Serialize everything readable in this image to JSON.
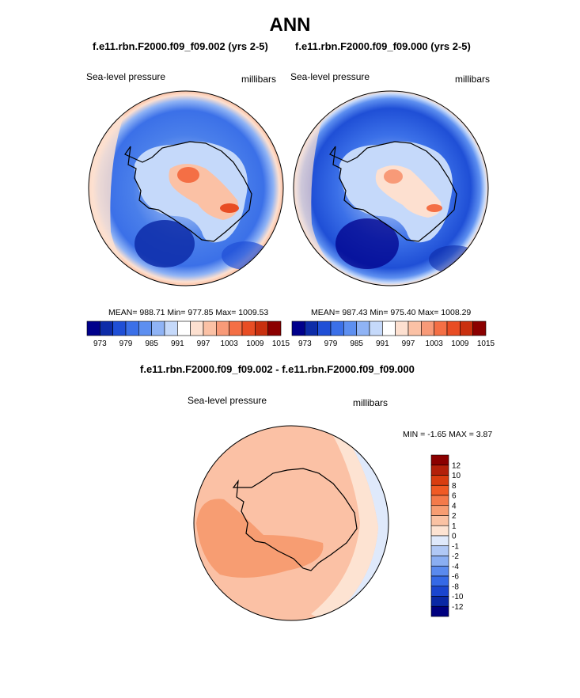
{
  "title": "ANN",
  "panels": [
    {
      "run": "f.e11.rbn.F2000.f09_f09.002 (yrs 2-5)",
      "variable": "Sea-level pressure",
      "units": "millibars",
      "stats": "MEAN= 988.71  Min= 977.85  Max= 1009.53"
    },
    {
      "run": "f.e11.rbn.F2000.f09_f09.000 (yrs 2-5)",
      "variable": "Sea-level pressure",
      "units": "millibars",
      "stats": "MEAN= 987.43  Min= 975.40  Max= 1008.29"
    }
  ],
  "diff": {
    "title": "f.e11.rbn.F2000.f09_f09.002 - f.e11.rbn.F2000.f09_f09.000",
    "variable": "Sea-level pressure",
    "units": "millibars",
    "stats": "MIN =  -1.65 MAX =  3.87"
  },
  "chart_data": [
    {
      "type": "heatmap",
      "projection": "south polar stereographic",
      "title": "f.e11.rbn.F2000.f09_f09.002 (yrs 2-5)",
      "variable": "Sea-level pressure",
      "units": "millibars",
      "mean": 988.71,
      "min": 977.85,
      "max": 1009.53,
      "colorbar_ticks": [
        "973",
        "979",
        "985",
        "991",
        "997",
        "1003",
        "1009",
        "1015"
      ],
      "colorbar_colors": [
        "#00008b",
        "#0d2ca8",
        "#1f4fd6",
        "#3b70e8",
        "#5d8ff0",
        "#8fb3f5",
        "#c5d9fa",
        "#ffffff",
        "#fde0d0",
        "#fbc1a5",
        "#f89a78",
        "#f46f45",
        "#e84d24",
        "#c9300f",
        "#8b0000"
      ]
    },
    {
      "type": "heatmap",
      "projection": "south polar stereographic",
      "title": "f.e11.rbn.F2000.f09_f09.000 (yrs 2-5)",
      "variable": "Sea-level pressure",
      "units": "millibars",
      "mean": 987.43,
      "min": 975.4,
      "max": 1008.29,
      "colorbar_ticks": [
        "973",
        "979",
        "985",
        "991",
        "997",
        "1003",
        "1009",
        "1015"
      ],
      "colorbar_colors": [
        "#00008b",
        "#0d2ca8",
        "#1f4fd6",
        "#3b70e8",
        "#5d8ff0",
        "#8fb3f5",
        "#c5d9fa",
        "#ffffff",
        "#fde0d0",
        "#fbc1a5",
        "#f89a78",
        "#f46f45",
        "#e84d24",
        "#c9300f",
        "#8b0000"
      ]
    },
    {
      "type": "heatmap",
      "projection": "south polar stereographic",
      "title": "f.e11.rbn.F2000.f09_f09.002 - f.e11.rbn.F2000.f09_f09.000",
      "variable": "Sea-level pressure",
      "units": "millibars",
      "min": -1.65,
      "max": 3.87,
      "colorbar_ticks": [
        "12",
        "10",
        "8",
        "6",
        "4",
        "2",
        "1",
        "0",
        "-1",
        "-2",
        "-4",
        "-6",
        "-8",
        "-10",
        "-12"
      ],
      "colorbar_colors": [
        "#8b0000",
        "#b3200a",
        "#d93d10",
        "#f05a24",
        "#f47a4a",
        "#f79d72",
        "#fac2a3",
        "#fde3d2",
        "#dfe9fb",
        "#b0c8f5",
        "#8aaef2",
        "#5a8aee",
        "#3569e6",
        "#1a45cf",
        "#0a28a5",
        "#00007f"
      ]
    }
  ]
}
